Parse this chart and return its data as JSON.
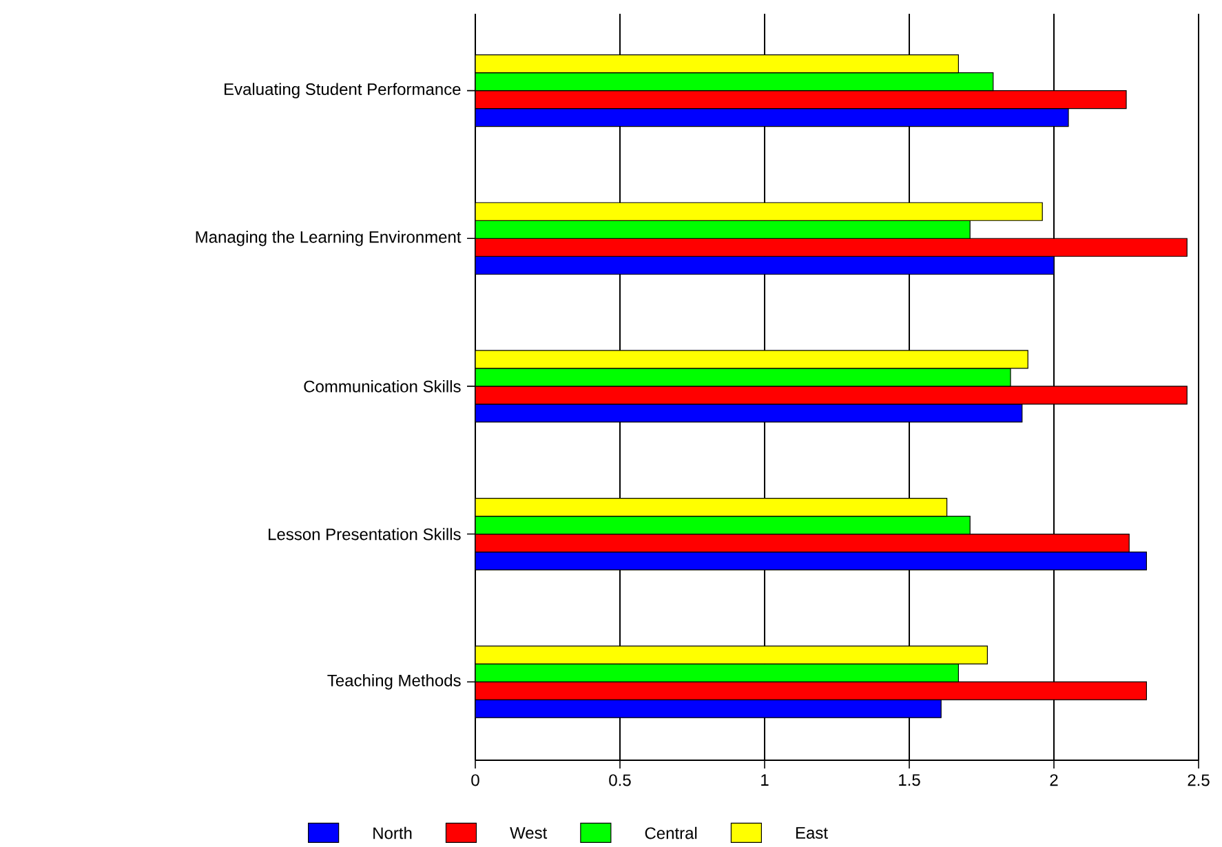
{
  "chart_data": {
    "type": "bar",
    "orientation": "horizontal",
    "categories": [
      "Evaluating Student Performance",
      "Managing the Learning Environment",
      "Communication Skills",
      "Lesson Presentation Skills",
      "Teaching Methods"
    ],
    "series": [
      {
        "name": "North",
        "color": "#0000ff",
        "values": [
          2.05,
          2.0,
          1.89,
          2.32,
          1.61
        ]
      },
      {
        "name": "West",
        "color": "#ff0000",
        "values": [
          2.25,
          2.46,
          2.46,
          2.26,
          2.32
        ]
      },
      {
        "name": "Central",
        "color": "#00ff00",
        "values": [
          1.79,
          1.71,
          1.85,
          1.71,
          1.67
        ]
      },
      {
        "name": "East",
        "color": "#ffff00",
        "values": [
          1.67,
          1.96,
          1.91,
          1.63,
          1.77
        ]
      }
    ],
    "xlim": [
      0,
      2.5
    ],
    "xticks": [
      0,
      0.5,
      1,
      1.5,
      2,
      2.5
    ],
    "grid": "x",
    "legend": "bottom"
  }
}
